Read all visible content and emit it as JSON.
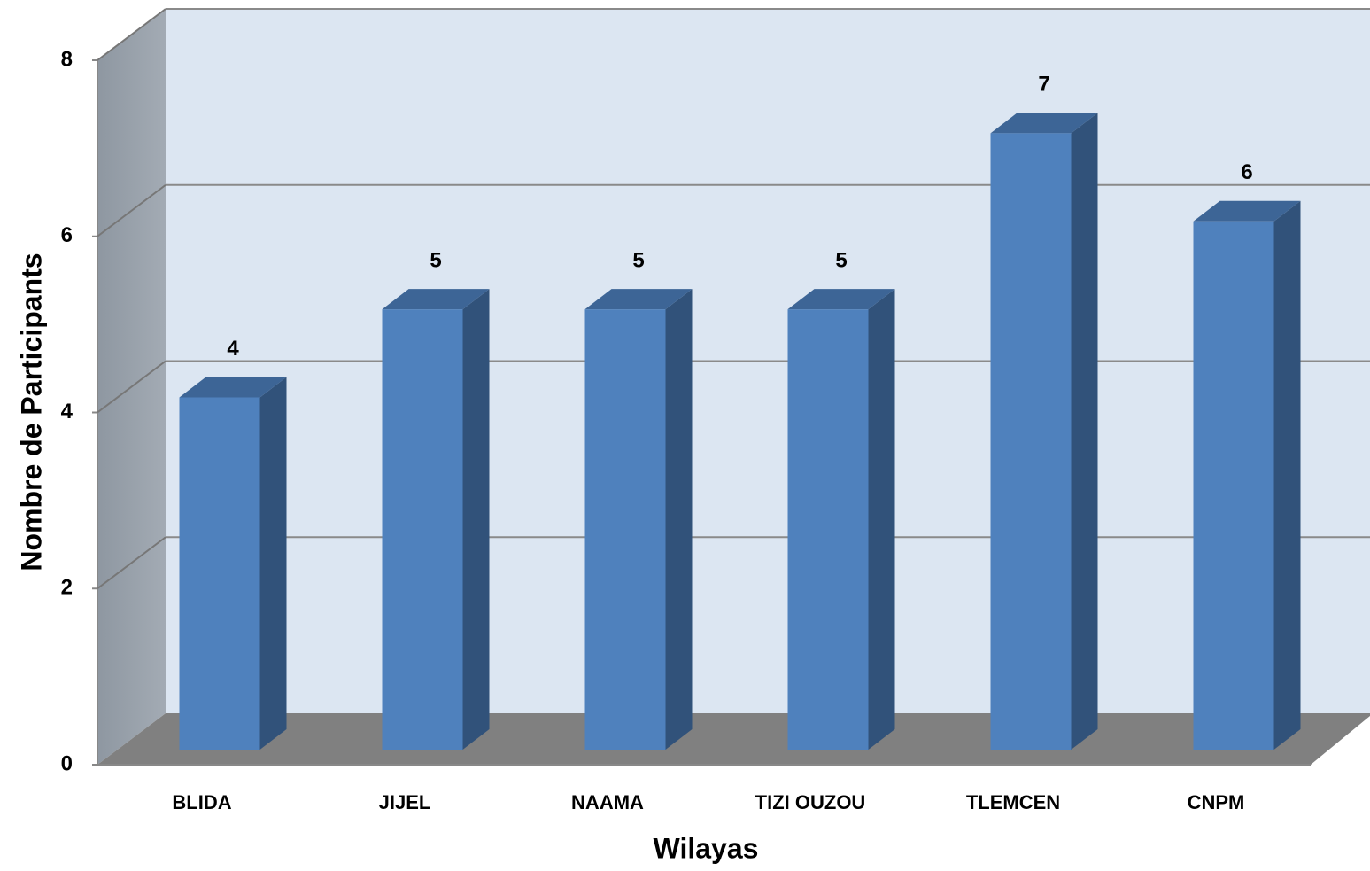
{
  "chart_data": {
    "type": "bar3d",
    "categories": [
      "BLIDA",
      "JIJEL",
      "NAAMA",
      "TIZI OUZOU",
      "TLEMCEN",
      "CNPM"
    ],
    "values": [
      4,
      5,
      5,
      5,
      7,
      6
    ],
    "color": "#4f81bd",
    "ylim": [
      0,
      8
    ],
    "yticks": [
      0,
      2,
      4,
      6,
      8
    ],
    "grid": true,
    "xlabel": "Wilayas",
    "ylabel": "Nombre de Participants"
  }
}
